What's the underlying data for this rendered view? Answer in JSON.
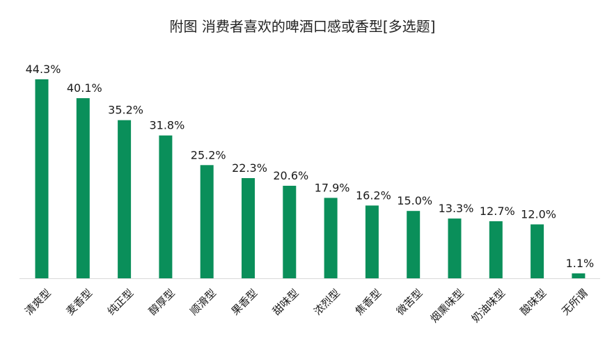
{
  "chart_data": {
    "type": "bar",
    "title": "附图 消费者喜欢的啤酒口感或香型[多选题]",
    "categories": [
      "清爽型",
      "麦香型",
      "纯正型",
      "醇厚型",
      "顺滑型",
      "果香型",
      "甜味型",
      "浓烈型",
      "焦香型",
      "微苦型",
      "烟熏味型",
      "奶油味型",
      "酸味型",
      "无所谓"
    ],
    "values": [
      44.3,
      40.1,
      35.2,
      31.8,
      25.2,
      22.3,
      20.6,
      17.9,
      16.2,
      15.0,
      13.3,
      12.7,
      12.0,
      1.1
    ],
    "value_labels": [
      "44.3%",
      "40.1%",
      "35.2%",
      "31.8%",
      "25.2%",
      "22.3%",
      "20.6%",
      "17.9%",
      "16.2%",
      "15.0%",
      "13.3%",
      "12.7%",
      "12.0%",
      "1.1%"
    ],
    "xlabel": "",
    "ylabel": "",
    "ylim": [
      0,
      50
    ],
    "grid": false,
    "legend": "none",
    "bar_color": "#0a8f5a",
    "axis_color": "#d9d9d9"
  }
}
